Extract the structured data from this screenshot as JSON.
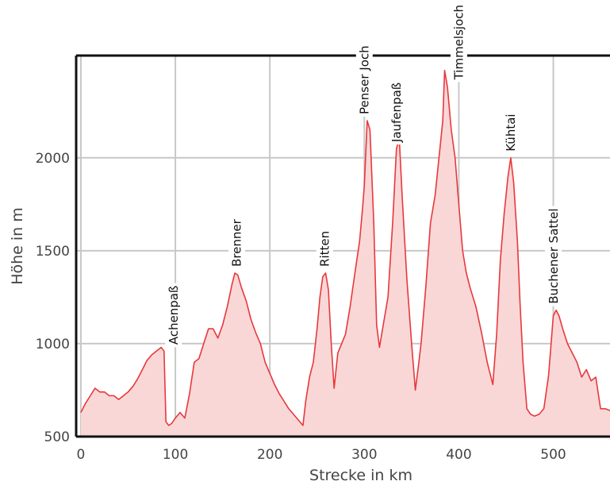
{
  "chart_data": {
    "type": "area",
    "title": "",
    "xlabel": "Strecke in km",
    "ylabel": "Höhe in m",
    "xlim": [
      -5,
      560
    ],
    "ylim": [
      500,
      2550
    ],
    "x_ticks": [
      0,
      100,
      200,
      300,
      400,
      500
    ],
    "y_ticks": [
      500,
      1000,
      1500,
      2000
    ],
    "grid": true,
    "colors": {
      "line": "#e8383b",
      "fill": "#f9d7d7",
      "grid": "#c8c8c8",
      "frame": "#111111"
    },
    "series": [
      {
        "x": [
          0,
          5,
          10,
          15,
          20,
          25,
          30,
          35,
          40,
          45,
          50,
          55,
          60,
          65,
          70,
          75,
          80,
          85,
          88,
          90,
          93,
          96,
          100,
          105,
          110,
          115,
          120,
          125,
          130,
          135,
          140,
          145,
          150,
          155,
          160,
          163,
          166,
          170,
          175,
          180,
          185,
          190,
          195,
          200,
          205,
          210,
          215,
          220,
          225,
          230,
          235,
          238,
          242,
          246,
          250,
          253,
          256,
          259,
          262,
          265,
          268,
          272,
          276,
          280,
          285,
          290,
          295,
          298,
          300,
          303,
          306,
          310,
          313,
          316,
          320,
          325,
          330,
          334,
          337,
          340,
          345,
          350,
          354,
          357,
          360,
          365,
          370,
          375,
          380,
          383,
          385,
          388,
          392,
          396,
          400,
          404,
          408,
          412,
          418,
          424,
          430,
          436,
          440,
          444,
          448,
          452,
          455,
          458,
          462,
          465,
          468,
          472,
          476,
          480,
          485,
          490,
          495,
          500,
          503,
          506,
          510,
          515,
          520,
          525,
          530,
          535,
          540,
          545,
          550,
          555,
          560
        ],
        "y": [
          630,
          680,
          720,
          760,
          740,
          740,
          720,
          720,
          700,
          720,
          740,
          770,
          810,
          860,
          910,
          940,
          960,
          980,
          960,
          580,
          560,
          570,
          600,
          630,
          600,
          730,
          900,
          920,
          1000,
          1080,
          1080,
          1030,
          1100,
          1200,
          1320,
          1380,
          1370,
          1300,
          1230,
          1130,
          1060,
          1000,
          900,
          840,
          780,
          730,
          690,
          650,
          620,
          590,
          560,
          690,
          820,
          900,
          1080,
          1250,
          1360,
          1380,
          1290,
          1000,
          760,
          950,
          1000,
          1050,
          1200,
          1380,
          1550,
          1720,
          1850,
          2200,
          2150,
          1650,
          1100,
          980,
          1100,
          1250,
          1650,
          2050,
          2100,
          1800,
          1350,
          1000,
          750,
          870,
          1000,
          1300,
          1650,
          1800,
          2050,
          2200,
          2470,
          2380,
          2150,
          2000,
          1750,
          1500,
          1380,
          1300,
          1200,
          1060,
          900,
          780,
          1050,
          1450,
          1700,
          1900,
          2000,
          1870,
          1550,
          1200,
          900,
          650,
          620,
          610,
          620,
          650,
          830,
          1150,
          1180,
          1150,
          1080,
          1000,
          950,
          900,
          820,
          860,
          800,
          820,
          650,
          650,
          640
        ]
      }
    ],
    "annotations": [
      {
        "label": "Achenpaß",
        "x": 98,
        "y": 960
      },
      {
        "label": "Brenner",
        "x": 165,
        "y": 1380
      },
      {
        "label": "Ritten",
        "x": 258,
        "y": 1380
      },
      {
        "label": "Penser Joch",
        "x": 300,
        "y": 2200
      },
      {
        "label": "Jaufenpaß",
        "x": 334,
        "y": 2050
      },
      {
        "label": "Timmelsjoch",
        "x": 400,
        "y": 2470
      },
      {
        "label": "Kühtai",
        "x": 455,
        "y": 2000
      },
      {
        "label": "Buchener Sattel",
        "x": 500,
        "y": 1180
      }
    ]
  }
}
